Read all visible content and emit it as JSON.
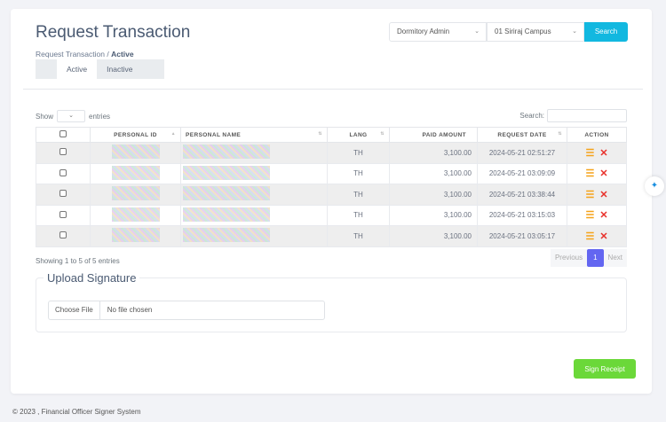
{
  "header": {
    "title": "Request Transaction",
    "breadcrumb_root": "Request Transaction",
    "breadcrumb_sep": "/",
    "breadcrumb_current": "Active"
  },
  "tabs": [
    {
      "label": "Active"
    },
    {
      "label": "Inactive"
    }
  ],
  "filters": {
    "role": "Dormitory Admin",
    "campus": "01 Siriraj Campus",
    "search_label": "Search"
  },
  "table_controls": {
    "show": "Show",
    "entries": "entries",
    "search": "Search:"
  },
  "columns": [
    "PERSONAL ID",
    "PERSONAL NAME",
    "LANG",
    "PAID AMOUNT",
    "REQUEST DATE",
    "ACTION"
  ],
  "rows": [
    {
      "lang": "TH",
      "amount": "3,100.00",
      "date": "2024-05-21 02:51:27"
    },
    {
      "lang": "TH",
      "amount": "3,100.00",
      "date": "2024-05-21 03:09:09"
    },
    {
      "lang": "TH",
      "amount": "3,100.00",
      "date": "2024-05-21 03:38:44"
    },
    {
      "lang": "TH",
      "amount": "3,100.00",
      "date": "2024-05-21 03:15:03"
    },
    {
      "lang": "TH",
      "amount": "3,100.00",
      "date": "2024-05-21 03:05:17"
    }
  ],
  "info": "Showing 1 to 5 of 5 entries",
  "pager": {
    "prev": "Previous",
    "page": "1",
    "next": "Next"
  },
  "upload": {
    "legend": "Upload Signature",
    "choose": "Choose File",
    "none": "No file chosen"
  },
  "sign_label": "Sign Receipt",
  "footer": "© 2023 , Financial Officer Signer System"
}
